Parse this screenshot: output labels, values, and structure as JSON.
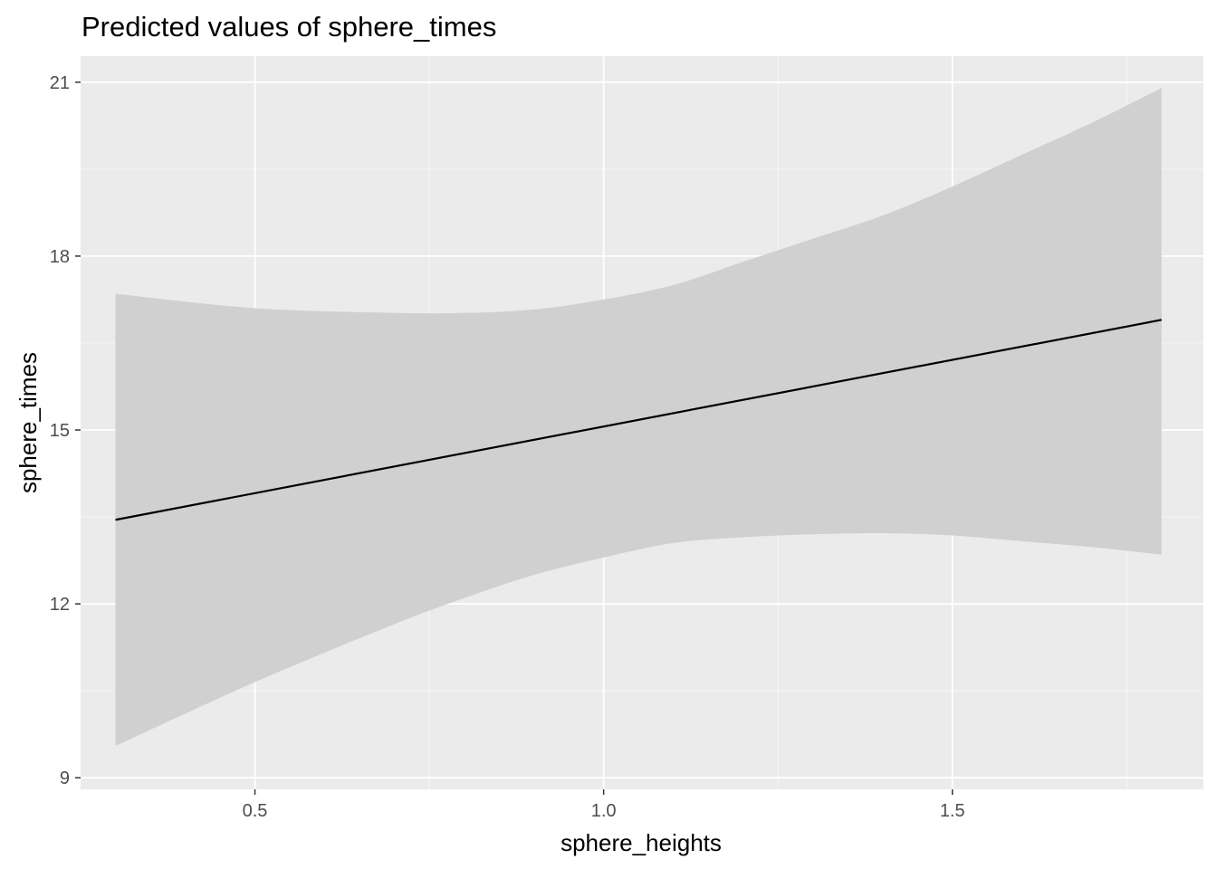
{
  "chart_data": {
    "type": "line",
    "title": "Predicted values of sphere_times",
    "xlabel": "sphere_heights",
    "ylabel": "sphere_times",
    "xlim": [
      0.25,
      1.86
    ],
    "ylim": [
      8.8,
      21.45
    ],
    "x_ticks": [
      0.5,
      1.0,
      1.5
    ],
    "x_tick_labels": [
      "0.5",
      "1.0",
      "1.5"
    ],
    "y_ticks": [
      9,
      12,
      15,
      18,
      21
    ],
    "y_tick_labels": [
      "9",
      "12",
      "15",
      "18",
      "21"
    ],
    "grid": true,
    "legend": "none",
    "series": [
      {
        "x": [
          0.3,
          1.8
        ],
        "values": [
          13.45,
          16.9
        ]
      }
    ],
    "confidence_band": {
      "x": [
        0.3,
        0.5,
        0.7,
        0.8,
        0.9,
        1.0,
        1.1,
        1.2,
        1.3,
        1.4,
        1.5,
        1.6,
        1.7,
        1.8
      ],
      "upper": [
        17.35,
        17.1,
        17.02,
        17.02,
        17.08,
        17.25,
        17.5,
        17.9,
        18.3,
        18.7,
        19.2,
        19.75,
        20.3,
        20.9
      ],
      "lower": [
        9.55,
        10.65,
        11.65,
        12.1,
        12.5,
        12.8,
        13.05,
        13.15,
        13.2,
        13.22,
        13.18,
        13.08,
        12.98,
        12.85
      ]
    },
    "colors": {
      "panel_background": "#ebebeb",
      "grid": "#ffffff",
      "line": "#000000",
      "band": "#d0d0d0",
      "tick_label": "#4d4d4d"
    }
  }
}
